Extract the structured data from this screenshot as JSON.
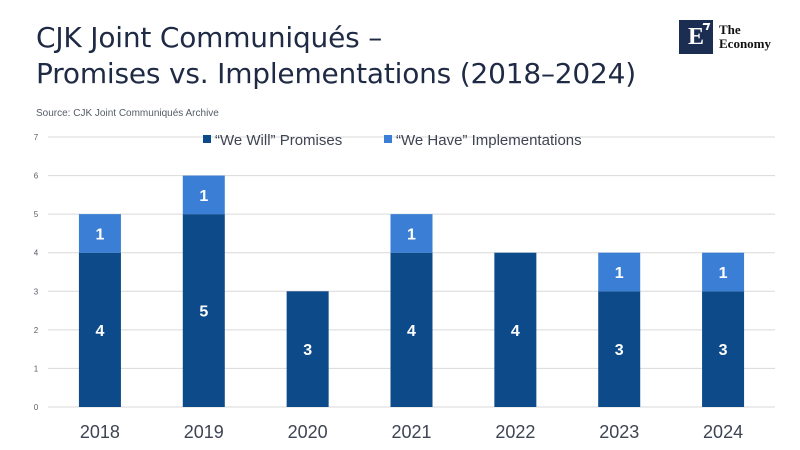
{
  "header": {
    "title_line1": "CJK Joint Communiqués –",
    "title_line2": "Promises vs. Implementations (2018–2024)",
    "source": "Source:  CJK Joint Communiqués Archive"
  },
  "logo": {
    "letter": "E",
    "line1": "The",
    "line2": "Economy"
  },
  "colors": {
    "promises": "#0d4a8a",
    "implementations": "#3a7fd5",
    "grid": "#d9d9d9",
    "axis_text": "#555b66",
    "category_text": "#3d4452",
    "label_text": "#ffffff"
  },
  "chart_data": {
    "type": "bar",
    "stacked": true,
    "categories": [
      "2018",
      "2019",
      "2020",
      "2021",
      "2022",
      "2023",
      "2024"
    ],
    "series": [
      {
        "name": "“We Will” Promises",
        "values": [
          4,
          5,
          3,
          4,
          4,
          3,
          3
        ],
        "labels": [
          "4",
          "5",
          "3",
          "4",
          "4",
          "3",
          "3"
        ]
      },
      {
        "name": "“We Have” Implementations",
        "values": [
          1,
          1,
          0,
          1,
          0,
          1,
          1
        ],
        "labels": [
          "1",
          "1",
          "",
          "1",
          "",
          "1",
          "1"
        ]
      }
    ],
    "ylim": [
      0,
      7
    ],
    "yticks": [
      "0",
      "1",
      "2",
      "3",
      "4",
      "5",
      "6",
      "7"
    ],
    "legend_position": "top",
    "grid": true
  }
}
